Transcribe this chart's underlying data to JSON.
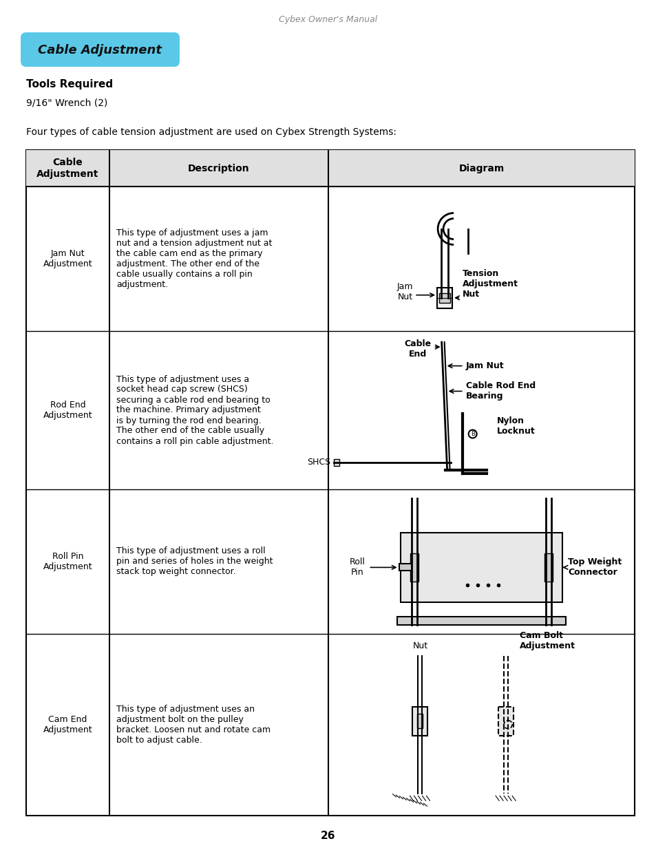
{
  "page_title": "Cybex Owner's Manual",
  "section_title": "Cable Adjustment",
  "section_bg_color": "#5BC8E8",
  "tools_required_label": "Tools Required",
  "tools_required_value": "9/16\" Wrench (2)",
  "intro_text": "Four types of cable tension adjustment are used on Cybex Strength Systems:",
  "table_header_col0": "Cable\nAdjustment",
  "table_header_col1": "Description",
  "table_header_col2": "Diagram",
  "row0_label": "Jam Nut\nAdjustment",
  "row0_desc": "This type of adjustment uses a jam\nnut and a tension adjustment nut at\nthe cable cam end as the primary\nadjustment. The other end of the\ncable usually contains a roll pin\nadjustment.",
  "row1_label": "Rod End\nAdjustment",
  "row1_desc": "This type of adjustment uses a\nsocket head cap screw (SHCS)\nsecuring a cable rod end bearing to\nthe machine. Primary adjustment\nis by turning the rod end bearing.\nThe other end of the cable usually\ncontains a roll pin cable adjustment.",
  "row2_label": "Roll Pin\nAdjustment",
  "row2_desc": "This type of adjustment uses a roll\npin and series of holes in the weight\nstack top weight connector.",
  "row3_label": "Cam End\nAdjustment",
  "row3_desc": "This type of adjustment uses an\nadjustment bolt on the pulley\nbracket. Loosen nut and rotate cam\nbolt to adjust cable.",
  "page_number": "26",
  "bg_color": "#ffffff"
}
